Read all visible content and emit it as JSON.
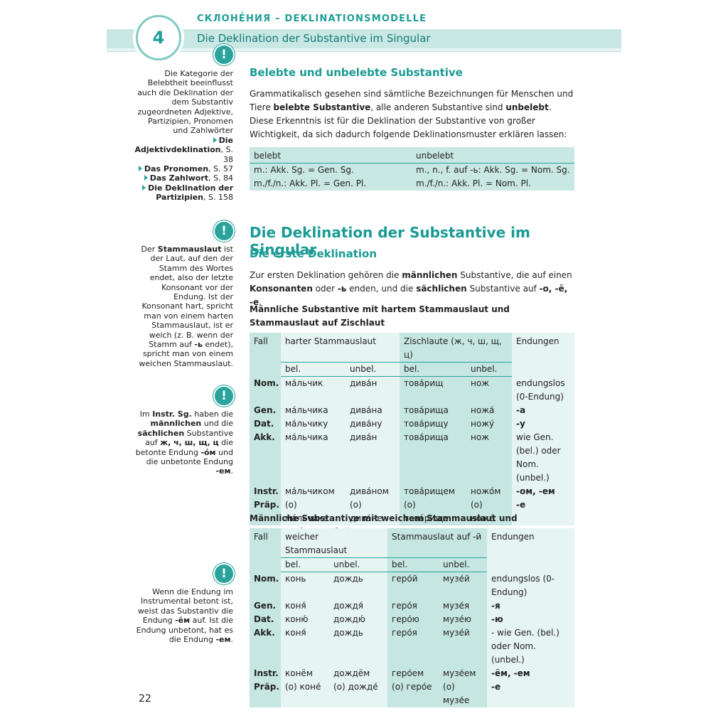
{
  "header": {
    "number": "4",
    "kicker": "СКЛОНЕ́НИЯ – DEKLINATIONSMODELLE",
    "title": "Die Deklination der Substantive im Singular"
  },
  "side_notes": [
    {
      "segments": [
        {
          "text": "Die Kategorie der Belebtheit beeinflusst auch die Deklination der dem Substantiv zugeordneten Adjektive, Partizipien, Pronomen und Zahlwörter"
        }
      ],
      "references": [
        {
          "bold": "Die Adjektivdeklination",
          "text": ", S. 38"
        },
        {
          "bold": "Das Pronomen",
          "text": ", S. 57"
        },
        {
          "bold": "Das Zahlwort",
          "text": ", S. 84"
        },
        {
          "bold": "Die Deklination der Partizipien",
          "text": ", S. 158"
        }
      ]
    },
    {
      "segments": [
        {
          "text": "Der "
        },
        {
          "text": "Stammauslaut",
          "bold": true
        },
        {
          "text": " ist der Laut, auf den der Stamm des Wortes endet, also der letzte Konsonant vor der Endung. Ist der Konsonant hart, spricht man von einem harten Stammauslaut, ist er weich (z. B. wenn der Stamm auf "
        },
        {
          "text": "-ь",
          "bold": true
        },
        {
          "text": " endet), spricht man von einem weichen Stammauslaut."
        }
      ]
    },
    {
      "segments": [
        {
          "text": "Im "
        },
        {
          "text": "Instr. Sg.",
          "bold": true
        },
        {
          "text": " haben die "
        },
        {
          "text": "männlichen",
          "bold": true
        },
        {
          "text": " und die "
        },
        {
          "text": "sächlichen",
          "bold": true
        },
        {
          "text": " Substantive auf "
        },
        {
          "text": "ж, ч, ш, щ, ц",
          "bold": true
        },
        {
          "text": " die betonte Endung "
        },
        {
          "text": "-óм",
          "bold": true
        },
        {
          "text": " und die unbetonte Endung "
        },
        {
          "text": "-ем",
          "bold": true
        },
        {
          "text": "."
        }
      ]
    },
    {
      "segments": [
        {
          "text": "Wenn die Endung im Instrumental betont ist, weist das Substantiv die Endung "
        },
        {
          "text": "-ём",
          "bold": true
        },
        {
          "text": " auf. Ist die Endung unbetont, hat es die Endung "
        },
        {
          "text": "-ем",
          "bold": true
        },
        {
          "text": "."
        }
      ]
    }
  ],
  "main": [
    {
      "kind": "h2",
      "text": "Belebte und unbelebte Substantive"
    },
    {
      "kind": "p",
      "segments": [
        {
          "text": "Grammatikalisch gesehen sind sämtliche Bezeichnungen für Menschen und Tiere "
        },
        {
          "text": "belebte Substantive",
          "bold": true
        },
        {
          "text": ", alle anderen Substantive sind "
        },
        {
          "text": "unbelebt",
          "bold": true
        },
        {
          "text": ". Diese Erkenntnis ist für die Deklination der Substantive von großer Wichtigkeit, da sich dadurch folgende Deklinationsmuster erklären lassen:"
        }
      ]
    },
    {
      "kind": "table",
      "header": [
        {
          "text": "belebt"
        },
        {
          "text": "unbelebt"
        }
      ],
      "rows": [
        [
          "m.: Akk. Sg. = Gen. Sg.",
          "m., n., f. auf -ь: Akk. Sg. = Nom. Sg."
        ],
        [
          "m./f./n.: Akk. Pl. = Gen. Pl.",
          "m./f./n.: Akk. Pl. = Nom. Pl."
        ]
      ]
    },
    {
      "kind": "h1",
      "text": "Die Deklination der Substantive im Singular"
    },
    {
      "kind": "h2",
      "text": "Die erste Deklination"
    },
    {
      "kind": "p",
      "segments": [
        {
          "text": "Zur ersten Deklination gehören die "
        },
        {
          "text": "männlichen",
          "bold": true
        },
        {
          "text": " Substantive, die auf einen "
        },
        {
          "text": "Konsonanten",
          "bold": true
        },
        {
          "text": " oder "
        },
        {
          "text": "-ь",
          "bold": true
        },
        {
          "text": " enden, und die "
        },
        {
          "text": "sächlichen",
          "bold": true
        },
        {
          "text": " Substantive auf "
        },
        {
          "text": "-о, -ё, -е",
          "bold": true
        },
        {
          "text": "."
        }
      ]
    },
    {
      "kind": "h3",
      "text": "Männliche Substantive mit hartem Stammauslaut und Stammauslaut auf Zischlaut"
    },
    {
      "kind": "table",
      "header": [
        {
          "text": "Fall"
        },
        {
          "text": "harter Stammauslaut",
          "span": 2
        },
        {
          "text": "Zischlaute (ж, ч, ш, щ, ц)",
          "span": 2
        },
        {
          "text": "Endungen"
        }
      ],
      "subheader": [
        "bel.",
        "unbel.",
        "bel.",
        "unbel."
      ],
      "rows": [
        [
          "Nom.",
          "ма́льчик",
          "дива́н",
          "това́рищ",
          "нож",
          "endungslos (0-Endung)"
        ],
        [
          "Gen.",
          "ма́льчика",
          "дива́на",
          "това́рища",
          "ножа́",
          "-а"
        ],
        [
          "Dat.",
          "ма́льчику",
          "дива́ну",
          "това́рищу",
          "ножу́",
          "-у"
        ],
        [
          "Akk.",
          "ма́льчика",
          "дива́н",
          "това́рища",
          "нож",
          "wie Gen. (bel.) oder Nom. (unbel.)"
        ],
        [
          "Instr.",
          "ма́льчиком",
          "дива́ном",
          "това́рищем",
          "ножо́м",
          "-ом, -ем"
        ],
        [
          "Präp.",
          "(о) ма́льчике",
          "(о) дива́не",
          "(о) това́рище",
          "(о) ноже́",
          "-е"
        ]
      ]
    },
    {
      "kind": "h3",
      "text": "Männliche Substantive mit weichem Stammauslaut und Stammauslaut auf -й"
    },
    {
      "kind": "table",
      "header": [
        {
          "text": "Fall"
        },
        {
          "text": "weicher Stammauslaut",
          "span": 2
        },
        {
          "text": "Stammauslaut auf -й",
          "span": 2
        },
        {
          "text": "Endungen"
        }
      ],
      "subheader": [
        "bel.",
        "unbel.",
        "bel.",
        "unbel."
      ],
      "rows": [
        [
          "Nom.",
          "конь",
          "дождь",
          "геро́й",
          "музе́й",
          "endungslos (0-Endung)"
        ],
        [
          "Gen.",
          "коня́",
          "дождя́",
          "геро́я",
          "музе́я",
          "-я"
        ],
        [
          "Dat.",
          "коню́",
          "дождю́",
          "геро́ю",
          "музе́ю",
          "-ю"
        ],
        [
          "Akk.",
          "коня́",
          "дождь",
          "геро́я",
          "музе́й",
          "- wie Gen. (bel.) oder Nom. (unbel.)"
        ],
        [
          "Instr.",
          "конём",
          "дождём",
          "геро́ем",
          "музе́ем",
          "-ём, -ем"
        ],
        [
          "Präp.",
          "(о) коне́",
          "(о) дожде́",
          "(о) геро́е",
          "(о) музе́е",
          "-е"
        ]
      ]
    }
  ],
  "page_number": "22"
}
